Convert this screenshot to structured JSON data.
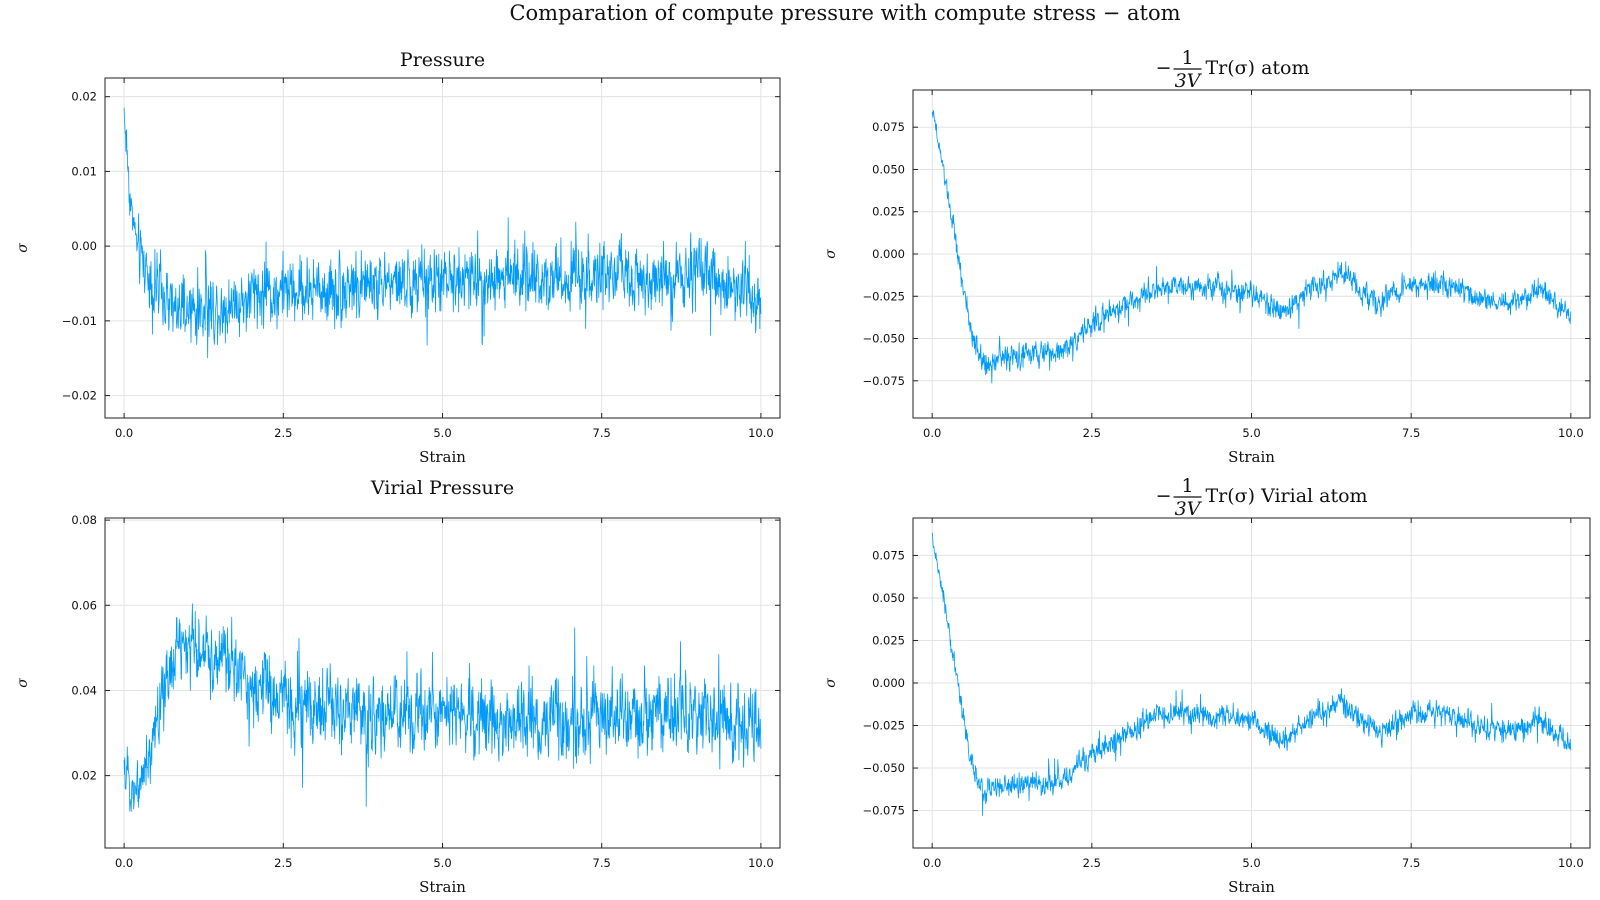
{
  "figure": {
    "title": "Comparation of compute pressure with compute stress − atom"
  },
  "colors": {
    "series": "#009AFA",
    "frame": "#222222",
    "grid": "#e3e3e3"
  },
  "chart_data": [
    {
      "type": "line",
      "title": "Pressure",
      "title_math": false,
      "xlabel": "Strain",
      "ylabel": "σ",
      "xlim": [
        -0.3,
        10.3
      ],
      "ylim": [
        -0.023,
        0.0225
      ],
      "xticks": [
        0.0,
        2.5,
        5.0,
        7.5,
        10.0
      ],
      "xtick_labels": [
        "0.0",
        "2.5",
        "5.0",
        "7.5",
        "10.0"
      ],
      "yticks": [
        -0.02,
        -0.01,
        0.0,
        0.01,
        0.02
      ],
      "ytick_labels": [
        "−0.02",
        "−0.01",
        "0.00",
        "0.01",
        "0.02"
      ],
      "grid": true,
      "series": [
        {
          "color": "#009AFA",
          "x": [
            0.0,
            0.1,
            0.2,
            0.4,
            0.6,
            0.8,
            1.0,
            1.5,
            2.0,
            2.5,
            3.0,
            4.0,
            5.0,
            6.0,
            7.0,
            8.0,
            9.0,
            10.0
          ],
          "y": [
            0.018,
            0.006,
            0.0,
            -0.004,
            -0.007,
            -0.009,
            -0.009,
            -0.008,
            -0.007,
            -0.006,
            -0.006,
            -0.005,
            -0.005,
            -0.004,
            -0.004,
            -0.004,
            -0.004,
            -0.006
          ],
          "noise_amplitude": [
            0.0035,
            0.0035,
            0.004,
            0.0045,
            0.0045,
            0.0045,
            0.0045,
            0.0045,
            0.0045,
            0.0045,
            0.0045,
            0.0045,
            0.0045,
            0.0045,
            0.0045,
            0.0045,
            0.0045,
            0.0045
          ]
        }
      ]
    },
    {
      "type": "line",
      "title_math": true,
      "title_prefix": "−",
      "title_numerator": "1",
      "title_denominator": "3V",
      "title_rest": "Tr(σ) atom",
      "xlabel": "Strain",
      "ylabel": "σ",
      "xlim": [
        -0.3,
        10.3
      ],
      "ylim": [
        -0.097,
        0.097
      ],
      "xticks": [
        0.0,
        2.5,
        5.0,
        7.5,
        10.0
      ],
      "xtick_labels": [
        "0.0",
        "2.5",
        "5.0",
        "7.5",
        "10.0"
      ],
      "yticks": [
        -0.075,
        -0.05,
        -0.025,
        0.0,
        0.025,
        0.05,
        0.075
      ],
      "ytick_labels": [
        "−0.075",
        "−0.050",
        "−0.025",
        "0.000",
        "0.025",
        "0.050",
        "0.075"
      ],
      "grid": true,
      "series": [
        {
          "color": "#009AFA",
          "x": [
            0.0,
            0.2,
            0.4,
            0.6,
            0.8,
            1.0,
            1.5,
            2.0,
            2.5,
            3.0,
            3.5,
            4.0,
            4.5,
            5.0,
            5.5,
            6.0,
            6.4,
            7.0,
            7.5,
            8.0,
            8.5,
            9.0,
            9.5,
            10.0
          ],
          "y": [
            0.085,
            0.045,
            0.0,
            -0.045,
            -0.065,
            -0.062,
            -0.06,
            -0.058,
            -0.042,
            -0.03,
            -0.02,
            -0.018,
            -0.02,
            -0.022,
            -0.035,
            -0.018,
            -0.012,
            -0.03,
            -0.018,
            -0.018,
            -0.025,
            -0.03,
            -0.022,
            -0.035
          ],
          "noise_amplitude": [
            0.004,
            0.005,
            0.006,
            0.007,
            0.008,
            0.007,
            0.007,
            0.007,
            0.007,
            0.007,
            0.007,
            0.007,
            0.007,
            0.007,
            0.007,
            0.007,
            0.007,
            0.007,
            0.007,
            0.007,
            0.007,
            0.007,
            0.007,
            0.007
          ]
        }
      ]
    },
    {
      "type": "line",
      "title": "Virial Pressure",
      "title_math": false,
      "xlabel": "Strain",
      "ylabel": "σ",
      "xlim": [
        -0.3,
        10.3
      ],
      "ylim": [
        0.003,
        0.0805
      ],
      "xticks": [
        0.0,
        2.5,
        5.0,
        7.5,
        10.0
      ],
      "xtick_labels": [
        "0.0",
        "2.5",
        "5.0",
        "7.5",
        "10.0"
      ],
      "yticks": [
        0.02,
        0.04,
        0.06,
        0.08
      ],
      "ytick_labels": [
        "0.02",
        "0.04",
        "0.06",
        "0.08"
      ],
      "grid": true,
      "series": [
        {
          "color": "#009AFA",
          "x": [
            0.0,
            0.2,
            0.4,
            0.6,
            0.8,
            1.0,
            1.5,
            2.0,
            2.5,
            3.0,
            4.0,
            5.0,
            6.0,
            7.0,
            8.0,
            9.0,
            10.0
          ],
          "y": [
            0.02,
            0.017,
            0.025,
            0.038,
            0.05,
            0.05,
            0.047,
            0.042,
            0.037,
            0.036,
            0.034,
            0.035,
            0.033,
            0.033,
            0.033,
            0.034,
            0.032
          ],
          "noise_amplitude": [
            0.006,
            0.006,
            0.007,
            0.008,
            0.009,
            0.009,
            0.009,
            0.009,
            0.009,
            0.009,
            0.009,
            0.009,
            0.009,
            0.009,
            0.009,
            0.009,
            0.009
          ]
        }
      ]
    },
    {
      "type": "line",
      "title_math": true,
      "title_prefix": "−",
      "title_numerator": "1",
      "title_denominator": "3V",
      "title_rest": "Tr(σ) Virial atom",
      "xlabel": "Strain",
      "ylabel": "σ",
      "xlim": [
        -0.3,
        10.3
      ],
      "ylim": [
        -0.097,
        0.097
      ],
      "xticks": [
        0.0,
        2.5,
        5.0,
        7.5,
        10.0
      ],
      "xtick_labels": [
        "0.0",
        "2.5",
        "5.0",
        "7.5",
        "10.0"
      ],
      "yticks": [
        -0.075,
        -0.05,
        -0.025,
        0.0,
        0.025,
        0.05,
        0.075
      ],
      "ytick_labels": [
        "−0.075",
        "−0.050",
        "−0.025",
        "0.000",
        "0.025",
        "0.050",
        "0.075"
      ],
      "grid": true,
      "series": [
        {
          "color": "#009AFA",
          "x": [
            0.0,
            0.2,
            0.4,
            0.6,
            0.8,
            1.0,
            1.5,
            2.0,
            2.5,
            3.0,
            3.5,
            4.0,
            4.5,
            5.0,
            5.5,
            6.0,
            6.4,
            7.0,
            7.5,
            8.0,
            8.5,
            9.0,
            9.5,
            10.0
          ],
          "y": [
            0.085,
            0.045,
            0.0,
            -0.045,
            -0.065,
            -0.062,
            -0.06,
            -0.058,
            -0.042,
            -0.03,
            -0.02,
            -0.018,
            -0.02,
            -0.022,
            -0.035,
            -0.018,
            -0.012,
            -0.03,
            -0.018,
            -0.018,
            -0.025,
            -0.03,
            -0.022,
            -0.035
          ],
          "noise_amplitude": [
            0.004,
            0.005,
            0.006,
            0.007,
            0.008,
            0.007,
            0.007,
            0.007,
            0.007,
            0.007,
            0.007,
            0.007,
            0.007,
            0.007,
            0.007,
            0.007,
            0.007,
            0.007,
            0.007,
            0.007,
            0.007,
            0.007,
            0.007,
            0.007
          ]
        }
      ]
    }
  ]
}
